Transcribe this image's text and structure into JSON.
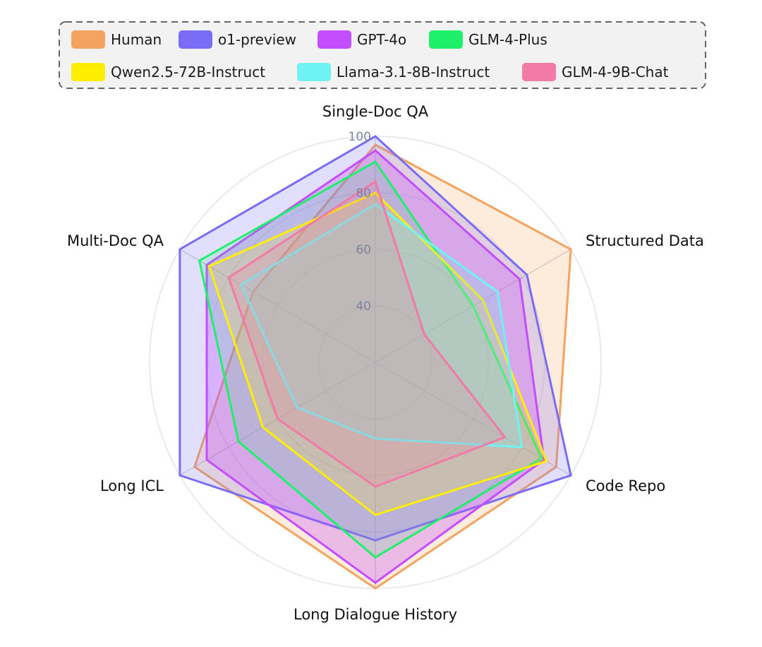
{
  "chart_data": {
    "type": "radar",
    "axes": [
      "Single-Doc QA",
      "Structured Data",
      "Code Repo",
      "Long Dialogue History",
      "Long ICL",
      "Multi-Doc QA"
    ],
    "rlim": [
      20,
      100
    ],
    "ticks": [
      40,
      60,
      80,
      100
    ],
    "grid": true,
    "legend_position": "top",
    "series": [
      {
        "name": "Human",
        "color": "#f4a460",
        "fill_opacity": 0.22,
        "values": [
          97,
          100,
          94,
          100,
          94,
          70
        ]
      },
      {
        "name": "o1-preview",
        "color": "#7b6cf6",
        "fill_opacity": 0.22,
        "values": [
          100,
          82,
          100,
          83,
          100,
          100
        ]
      },
      {
        "name": "GPT-4o",
        "color": "#c44dff",
        "fill_opacity": 0.3,
        "values": [
          95,
          79,
          89,
          98,
          89,
          89
        ]
      },
      {
        "name": "GLM-4-Plus",
        "color": "#1ef06a",
        "fill_opacity": 0.15,
        "values": [
          91,
          60,
          88,
          89,
          76,
          92
        ]
      },
      {
        "name": "Qwen2.5-72B-Instruct",
        "color": "#ffee00",
        "fill_opacity": 0.18,
        "values": [
          80,
          64,
          90,
          74,
          66,
          88
        ]
      },
      {
        "name": "Llama-3.1-8B-Instruct",
        "color": "#6ff2f2",
        "fill_opacity": 0.22,
        "values": [
          76,
          70,
          80,
          47,
          52,
          75
        ]
      },
      {
        "name": "GLM-4-9B-Chat",
        "color": "#f17aa6",
        "fill_opacity": 0.2,
        "values": [
          84,
          40,
          73,
          64,
          60,
          80
        ]
      }
    ]
  }
}
